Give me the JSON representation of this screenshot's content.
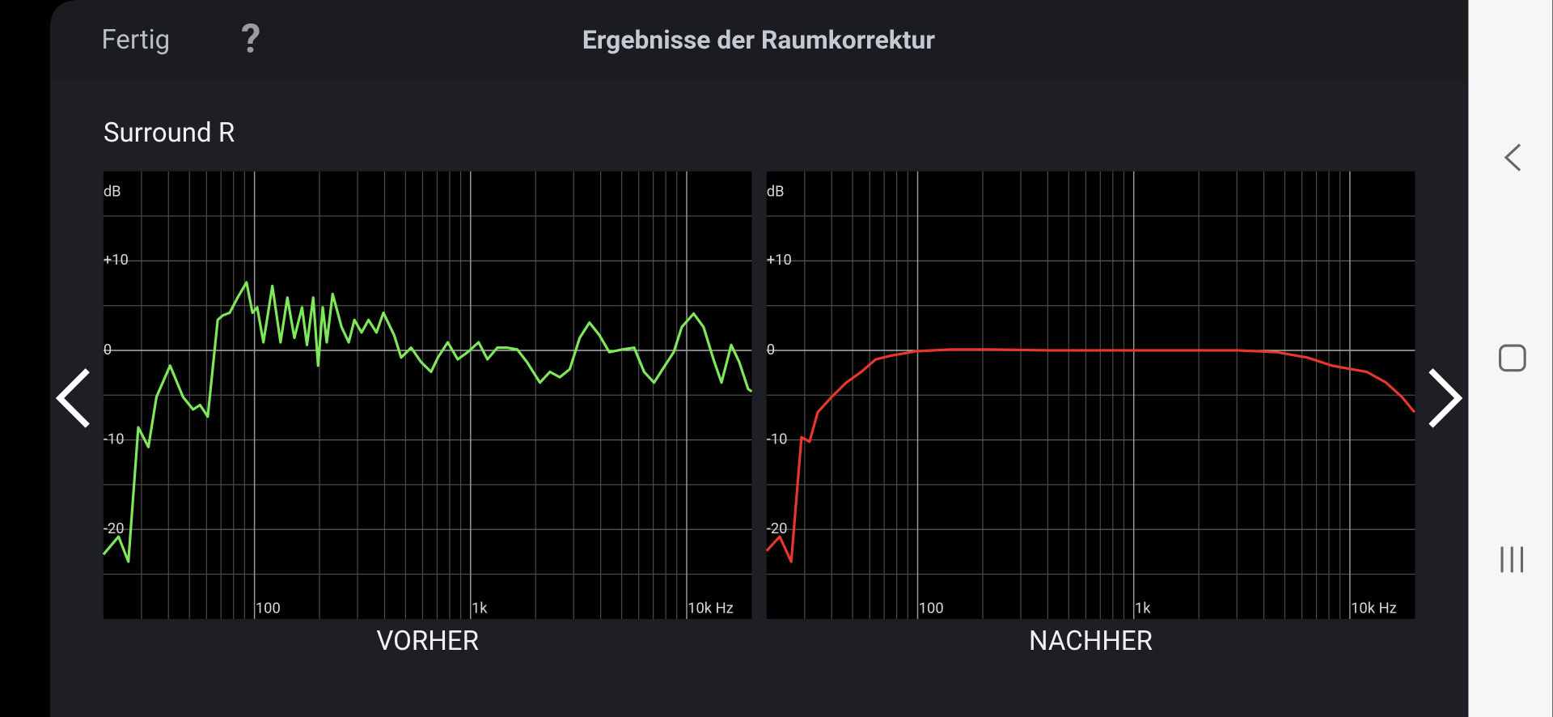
{
  "header": {
    "done": "Fertig",
    "help": "?",
    "title": "Ergebnisse der Raumkorrektur"
  },
  "section_title": "Surround R",
  "chart_data": [
    {
      "type": "line",
      "label": "VORHER",
      "y_label": "dB",
      "log_x": true,
      "grid": true,
      "xlim": [
        20,
        20000
      ],
      "ylim": [
        -30,
        20
      ],
      "xticks": [
        100,
        {
          "value": 1000,
          "label": "1k"
        },
        {
          "value": 10000,
          "label": "10k Hz"
        }
      ],
      "yticks": [
        {
          "value": 10,
          "label": "+10"
        },
        0,
        -10,
        -20
      ],
      "minor_xticks": [
        30,
        40,
        50,
        60,
        70,
        80,
        90,
        200,
        300,
        400,
        500,
        600,
        700,
        800,
        900,
        2000,
        3000,
        4000,
        5000,
        6000,
        7000,
        8000,
        9000
      ],
      "minor_yticks": [
        15,
        5,
        -5,
        -15,
        -25
      ],
      "x": [
        20,
        23.5,
        26.1,
        29,
        32.3,
        35.2,
        40.7,
        46.7,
        52,
        56,
        60.8,
        67.6,
        71.3,
        76.8,
        83.6,
        91.9,
        97.9,
        103,
        110,
        121,
        132,
        142,
        153,
        166,
        175,
        187,
        197,
        207,
        216,
        230,
        253,
        273,
        290,
        313,
        337,
        367,
        395,
        443,
        477,
        531,
        590,
        656,
        706,
        784,
        872,
        969,
        1089,
        1197,
        1330,
        1479,
        1644,
        1824,
        2094,
        2328,
        2588,
        2877,
        3198,
        3548,
        3945,
        4385,
        5035,
        5715,
        6353,
        7063,
        7834,
        8710,
        9485,
        10770,
        11970,
        13300,
        14490,
        16070,
        17500,
        19230,
        20000
      ],
      "series": [
        {
          "color": "#7ee85a",
          "values": [
            -22.8,
            -20.8,
            -23.6,
            -8.6,
            -10.8,
            -5.2,
            -1.7,
            -5.2,
            -6.6,
            -6.1,
            -7.4,
            3.4,
            3.9,
            4.2,
            5.9,
            7.6,
            4.2,
            4.8,
            0.9,
            7.2,
            0.9,
            5.9,
            1.4,
            4.8,
            0.6,
            5.9,
            -1.7,
            4.8,
            0.9,
            6.3,
            2.6,
            0.9,
            3.4,
            2.0,
            3.4,
            2.0,
            4.2,
            1.7,
            -0.8,
            0.3,
            -1.3,
            -2.4,
            -0.8,
            0.9,
            -1.0,
            -0.2,
            0.9,
            -1.0,
            0.3,
            0.3,
            0.1,
            -1.3,
            -3.6,
            -2.4,
            -3.0,
            -2.1,
            1.4,
            3.1,
            1.7,
            -0.2,
            0.1,
            0.3,
            -2.4,
            -3.6,
            -1.9,
            -0.2,
            2.6,
            4.1,
            2.6,
            -1.0,
            -3.6,
            0.6,
            -1.3,
            -4.3,
            -4.6
          ]
        }
      ]
    },
    {
      "type": "line",
      "label": "NACHHER",
      "y_label": "dB",
      "log_x": true,
      "grid": true,
      "xlim": [
        20,
        20000
      ],
      "ylim": [
        -30,
        20
      ],
      "xticks": [
        100,
        {
          "value": 1000,
          "label": "1k"
        },
        {
          "value": 10000,
          "label": "10k Hz"
        }
      ],
      "yticks": [
        {
          "value": 10,
          "label": "+10"
        },
        0,
        -10,
        -20
      ],
      "minor_xticks": [
        30,
        40,
        50,
        60,
        70,
        80,
        90,
        200,
        300,
        400,
        500,
        600,
        700,
        800,
        900,
        2000,
        3000,
        4000,
        5000,
        6000,
        7000,
        8000,
        9000
      ],
      "minor_yticks": [
        15,
        5,
        -5,
        -15,
        -25
      ],
      "x": [
        20,
        23,
        26,
        29,
        31.6,
        34.5,
        40,
        46.7,
        54.8,
        64,
        75,
        98,
        142,
        216,
        407,
        1054,
        3030,
        4600,
        6353,
        8240,
        11970,
        14700,
        17400,
        19900
      ],
      "series": [
        {
          "color": "#e8372c",
          "values": [
            -22.4,
            -20.8,
            -23.6,
            -9.7,
            -10.2,
            -6.9,
            -5.2,
            -3.6,
            -2.4,
            -1.0,
            -0.6,
            -0.1,
            0.1,
            0.1,
            0,
            0,
            0,
            -0.2,
            -0.8,
            -1.7,
            -2.4,
            -3.6,
            -5.2,
            -6.9
          ]
        }
      ]
    }
  ]
}
